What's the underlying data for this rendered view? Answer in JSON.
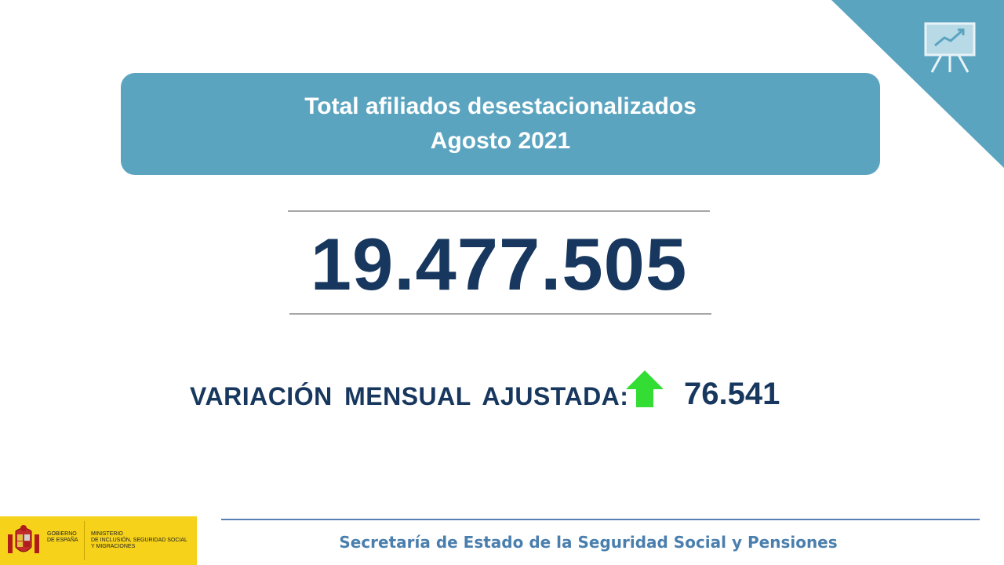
{
  "title": {
    "line1": "Total afiliados desestacionalizados",
    "line2": "Agosto 2021"
  },
  "main_value": "19.477.505",
  "variation": {
    "label": "VARIACIÓN MENSUAL AJUSTADA:",
    "direction": "up",
    "value": "76.541"
  },
  "footer": {
    "text": "Secretaría de Estado de la Seguridad Social y Pensiones"
  },
  "logo": {
    "left_lines": [
      "GOBIERNO",
      "DE ESPAÑA"
    ],
    "right_lines": [
      "MINISTERIO",
      "DE INCLUSIÓN, SEGURIDAD SOCIAL",
      "Y MIGRACIONES"
    ]
  },
  "colors": {
    "accent": "#5ba4c0",
    "number": "#17375e",
    "arrow": "#33dd33",
    "footer": "#4a7fad",
    "logo_bg": "#f6d21b"
  },
  "icons": {
    "corner": "presentation-chart-icon",
    "variation": "up-arrow-icon"
  }
}
